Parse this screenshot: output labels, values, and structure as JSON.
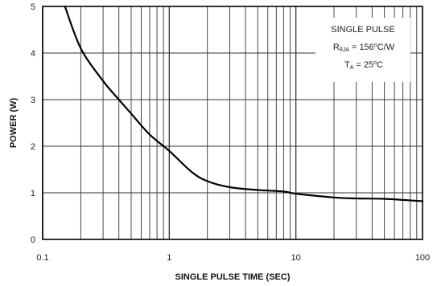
{
  "chart_data": {
    "type": "line",
    "title": "",
    "xlabel": "SINGLE PULSE TIME (SEC)",
    "ylabel": "POWER (W)",
    "xscale": "log",
    "xlim": [
      0.1,
      100
    ],
    "ylim": [
      0,
      5
    ],
    "grid": true,
    "x_ticks": [
      "0.1",
      "1",
      "10",
      "100"
    ],
    "y_ticks": [
      "0",
      "1",
      "2",
      "3",
      "4",
      "5"
    ],
    "x": [
      0.15,
      0.2,
      0.3,
      0.4,
      0.5,
      0.7,
      1,
      1.5,
      2,
      3,
      5,
      8,
      10,
      20,
      30,
      50,
      100
    ],
    "series": [
      {
        "values": [
          5.0,
          4.1,
          3.4,
          3.0,
          2.7,
          2.25,
          1.9,
          1.45,
          1.25,
          1.12,
          1.06,
          1.03,
          0.98,
          0.9,
          0.88,
          0.87,
          0.82
        ]
      }
    ],
    "annotation": {
      "line1": "SINGLE PULSE",
      "line2_prefix": "R",
      "line2_sub": "θJA",
      "line2_mid": " = 156",
      "line2_sup": "o",
      "line2_suffix": "C/W",
      "line3_prefix": "T",
      "line3_sub": "A",
      "line3_mid": " = 25",
      "line3_sup": "o",
      "line3_suffix": "C"
    },
    "colors": {
      "line": "#000000",
      "grid": "#333333"
    }
  }
}
